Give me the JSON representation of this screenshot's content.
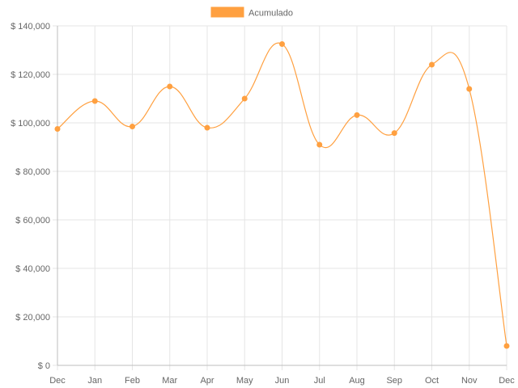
{
  "chart_data": {
    "type": "line",
    "categories": [
      "Dec",
      "Jan",
      "Feb",
      "Mar",
      "Apr",
      "May",
      "Jun",
      "Jul",
      "Aug",
      "Sep",
      "Oct",
      "Nov",
      "Dec"
    ],
    "series": [
      {
        "name": "Acumulado",
        "color": "#ffa040",
        "values": [
          97500,
          109000,
          98500,
          115000,
          98000,
          110000,
          132500,
          91000,
          103200,
          95800,
          124000,
          114000,
          8000
        ]
      }
    ],
    "ylim": [
      0,
      140000
    ],
    "y_ticks": [
      "$ 140,000",
      "$ 120,000",
      "$ 100,000",
      "$ 80,000",
      "$ 60,000",
      "$ 40,000",
      "$ 20,000",
      "$ 0"
    ],
    "y_tick_values": [
      140000,
      120000,
      100000,
      80000,
      60000,
      40000,
      20000,
      0
    ],
    "legend_position": "top",
    "grid": true,
    "smooth": true
  }
}
